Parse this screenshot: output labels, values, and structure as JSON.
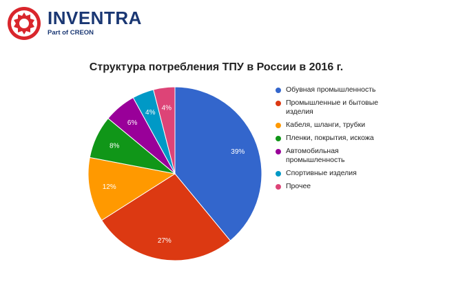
{
  "brand": {
    "name": "INVENTRA",
    "subtitle": "Part of CREON",
    "logo_color": "#d9262c",
    "name_color": "#1a3773"
  },
  "chart_data": {
    "type": "pie",
    "title": "Структура потребления ТПУ в России в 2016 г.",
    "legend_position": "right",
    "slices": [
      {
        "name": "Обувная промышленность",
        "value": 39,
        "label": "39%",
        "color": "#3366cc"
      },
      {
        "name": "Промышленные и бытовые изделия",
        "value": 27,
        "label": "27%",
        "color": "#dc3912"
      },
      {
        "name": "Кабеля, шланги, трубки",
        "value": 12,
        "label": "12%",
        "color": "#ff9900"
      },
      {
        "name": "Пленки, покрытия, искожа",
        "value": 8,
        "label": "8%",
        "color": "#109618"
      },
      {
        "name": "Автомобильная промышленность",
        "value": 6,
        "label": "6%",
        "color": "#990099"
      },
      {
        "name": "Спортивные изделия",
        "value": 4,
        "label": "4%",
        "color": "#0099c6"
      },
      {
        "name": "Прочее",
        "value": 4,
        "label": "4%",
        "color": "#dd4477"
      }
    ]
  }
}
